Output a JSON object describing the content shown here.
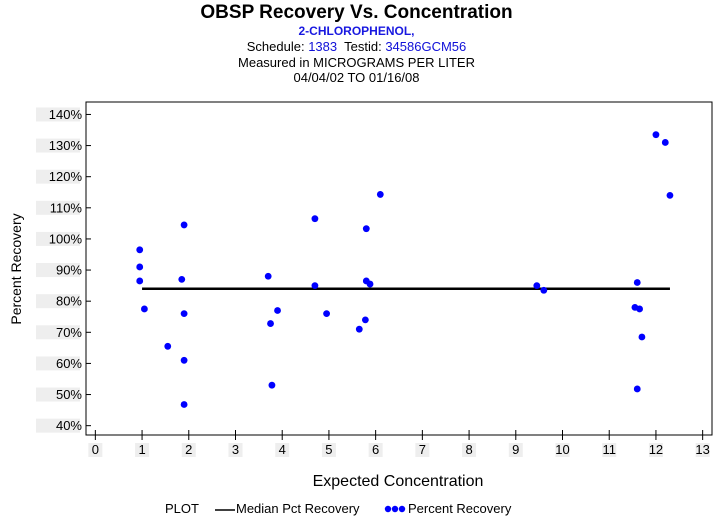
{
  "header": {
    "title": "OBSP Recovery Vs. Concentration",
    "compound": "2-CHLOROPHENOL,",
    "schedule_label": "Schedule:",
    "schedule_value": "1383",
    "testid_label": "Testid:",
    "testid_value": "34586GCM56",
    "measured": "Measured in  MICROGRAMS PER LITER",
    "date_range": "04/04/02 TO 01/16/08"
  },
  "legend": {
    "plot_label": "PLOT",
    "median_label": "Median Pct Recovery",
    "points_label": "Percent Recovery"
  },
  "colors": {
    "points": "#0000ff",
    "median": "#000000",
    "label_blue": "#1010d8"
  },
  "chart_data": {
    "type": "scatter",
    "xlabel": "Expected Concentration",
    "ylabel": "Percent Recovery",
    "xlim": [
      -0.2,
      13.2
    ],
    "ylim": [
      37,
      144
    ],
    "x_ticks": [
      0,
      1,
      2,
      3,
      4,
      5,
      6,
      7,
      8,
      9,
      10,
      11,
      12,
      13
    ],
    "y_ticks": [
      40,
      50,
      60,
      70,
      80,
      90,
      100,
      110,
      120,
      130,
      140
    ],
    "y_tick_labels": [
      "40%",
      "50%",
      "60%",
      "70%",
      "80%",
      "90%",
      "100%",
      "110%",
      "120%",
      "130%",
      "140%"
    ],
    "median": {
      "name": "Median Pct Recovery",
      "y": 84,
      "x_start": 1.0,
      "x_end": 12.3
    },
    "series": [
      {
        "name": "Percent Recovery",
        "points": [
          [
            0.95,
            96.5
          ],
          [
            0.95,
            91
          ],
          [
            0.95,
            86.5
          ],
          [
            1.05,
            77.5
          ],
          [
            1.55,
            65.5
          ],
          [
            1.9,
            104.5
          ],
          [
            1.85,
            87
          ],
          [
            1.9,
            76
          ],
          [
            1.9,
            61
          ],
          [
            1.9,
            46.8
          ],
          [
            3.7,
            88
          ],
          [
            3.75,
            72.8
          ],
          [
            3.9,
            77
          ],
          [
            3.78,
            53
          ],
          [
            4.7,
            106.5
          ],
          [
            4.7,
            85
          ],
          [
            4.95,
            76
          ],
          [
            5.8,
            103.3
          ],
          [
            5.8,
            86.5
          ],
          [
            5.88,
            85.5
          ],
          [
            5.78,
            74
          ],
          [
            5.65,
            71
          ],
          [
            6.1,
            114.3
          ],
          [
            9.45,
            85
          ],
          [
            9.6,
            83.5
          ],
          [
            11.55,
            78
          ],
          [
            11.6,
            86
          ],
          [
            11.65,
            77.5
          ],
          [
            11.7,
            68.5
          ],
          [
            11.6,
            51.8
          ],
          [
            12.0,
            133.5
          ],
          [
            12.2,
            131
          ],
          [
            12.3,
            114
          ]
        ]
      }
    ]
  }
}
